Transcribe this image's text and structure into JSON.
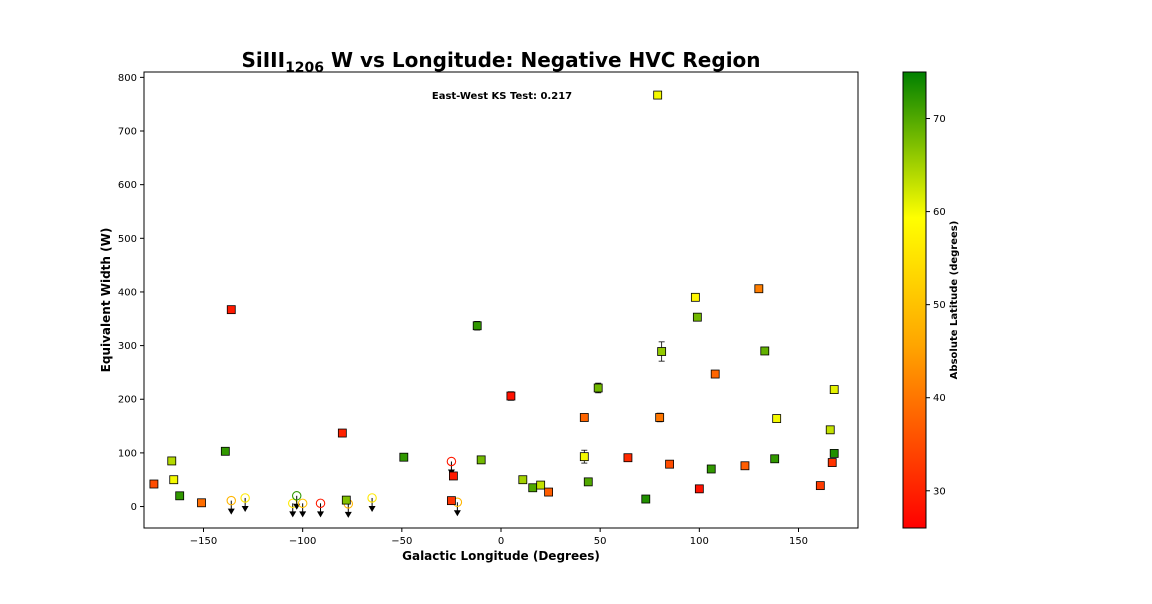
{
  "chart_data": {
    "type": "scatter",
    "title": {
      "prefix": "SiIII",
      "subscript": "1206",
      "suffix": " W vs Longitude: Negative HVC Region"
    },
    "xlabel": "Galactic Longitude (Degrees)",
    "ylabel": "Equivalent Width (W)",
    "xlim": [
      -180,
      180
    ],
    "ylim": [
      -40,
      810
    ],
    "xticks": [
      -150,
      -100,
      -50,
      0,
      50,
      100,
      150
    ],
    "xtick_labels": [
      "−150",
      "−100",
      "−50",
      "0",
      "50",
      "100",
      "150"
    ],
    "yticks": [
      0,
      100,
      200,
      300,
      400,
      500,
      600,
      700,
      800
    ],
    "ytick_labels": [
      "0",
      "100",
      "200",
      "300",
      "400",
      "500",
      "600",
      "700",
      "800"
    ],
    "grid": false,
    "annotation": "East-West KS Test: 0.217",
    "colorbar": {
      "label": "Absolute Latitude (degrees)",
      "range": [
        26,
        75
      ],
      "ticks": [
        30,
        40,
        50,
        60,
        70
      ],
      "tick_labels": [
        "30",
        "40",
        "50",
        "60",
        "70"
      ],
      "colors": [
        "#ff0000",
        "#ffa500",
        "#ffff00",
        "#008000"
      ]
    },
    "detections": [
      {
        "x": -175,
        "y": 42,
        "lat": 35,
        "err": 3
      },
      {
        "x": -166,
        "y": 85,
        "lat": 64,
        "err": 4
      },
      {
        "x": -165,
        "y": 50,
        "lat": 60,
        "err": 4
      },
      {
        "x": -162,
        "y": 20,
        "lat": 72,
        "err": 3
      },
      {
        "x": -151,
        "y": 7,
        "lat": 39,
        "err": 3
      },
      {
        "x": -139,
        "y": 103,
        "lat": 72,
        "err": 4
      },
      {
        "x": -136,
        "y": 367,
        "lat": 29,
        "err": 4
      },
      {
        "x": -80,
        "y": 137,
        "lat": 30,
        "err": 3
      },
      {
        "x": -78,
        "y": 12,
        "lat": 67,
        "err": 3
      },
      {
        "x": -49,
        "y": 92,
        "lat": 72,
        "err": 5
      },
      {
        "x": -25,
        "y": 11,
        "lat": 32,
        "err": 3
      },
      {
        "x": -24,
        "y": 57,
        "lat": 29,
        "err": 3
      },
      {
        "x": -12,
        "y": 337,
        "lat": 72,
        "err": 8
      },
      {
        "x": -10,
        "y": 87,
        "lat": 68,
        "err": 4
      },
      {
        "x": 5,
        "y": 206,
        "lat": 28,
        "err": 8
      },
      {
        "x": 11,
        "y": 50,
        "lat": 65,
        "err": 4
      },
      {
        "x": 16,
        "y": 35,
        "lat": 70,
        "err": 3
      },
      {
        "x": 20,
        "y": 40,
        "lat": 63,
        "err": 4
      },
      {
        "x": 24,
        "y": 27,
        "lat": 37,
        "err": 3
      },
      {
        "x": 42,
        "y": 166,
        "lat": 38,
        "err": 4
      },
      {
        "x": 42,
        "y": 93,
        "lat": 60,
        "err": 12
      },
      {
        "x": 44,
        "y": 46,
        "lat": 70,
        "err": 3
      },
      {
        "x": 49,
        "y": 221,
        "lat": 68,
        "err": 9
      },
      {
        "x": 64,
        "y": 91,
        "lat": 31,
        "err": 4
      },
      {
        "x": 73,
        "y": 14,
        "lat": 73,
        "err": 4
      },
      {
        "x": 79,
        "y": 767,
        "lat": 60,
        "err": 4
      },
      {
        "x": 80,
        "y": 166,
        "lat": 40,
        "err": 8
      },
      {
        "x": 81,
        "y": 289,
        "lat": 66,
        "err": 18
      },
      {
        "x": 85,
        "y": 79,
        "lat": 35,
        "err": 3
      },
      {
        "x": 98,
        "y": 390,
        "lat": 58,
        "err": 4
      },
      {
        "x": 99,
        "y": 353,
        "lat": 68,
        "err": 4
      },
      {
        "x": 100,
        "y": 33,
        "lat": 28,
        "err": 4
      },
      {
        "x": 106,
        "y": 70,
        "lat": 72,
        "err": 3
      },
      {
        "x": 108,
        "y": 247,
        "lat": 38,
        "err": 4
      },
      {
        "x": 123,
        "y": 76,
        "lat": 37,
        "err": 6
      },
      {
        "x": 130,
        "y": 406,
        "lat": 41,
        "err": 4
      },
      {
        "x": 133,
        "y": 290,
        "lat": 69,
        "err": 3
      },
      {
        "x": 138,
        "y": 89,
        "lat": 72,
        "err": 3
      },
      {
        "x": 139,
        "y": 164,
        "lat": 60,
        "err": 4
      },
      {
        "x": 161,
        "y": 39,
        "lat": 33,
        "err": 3
      },
      {
        "x": 166,
        "y": 143,
        "lat": 63,
        "err": 4
      },
      {
        "x": 167,
        "y": 82,
        "lat": 32,
        "err": 3
      },
      {
        "x": 168,
        "y": 218,
        "lat": 61,
        "err": 4
      },
      {
        "x": 168,
        "y": 99,
        "lat": 73,
        "err": 4
      }
    ],
    "upper_limits": [
      {
        "x": -136,
        "y": 11,
        "lat": 48
      },
      {
        "x": -129,
        "y": 16,
        "lat": 56
      },
      {
        "x": -105,
        "y": 6,
        "lat": 56
      },
      {
        "x": -103,
        "y": 20,
        "lat": 72
      },
      {
        "x": -100,
        "y": 6,
        "lat": 50
      },
      {
        "x": -91,
        "y": 6,
        "lat": 29
      },
      {
        "x": -77,
        "y": 5,
        "lat": 48
      },
      {
        "x": -65,
        "y": 16,
        "lat": 56
      },
      {
        "x": -25,
        "y": 84,
        "lat": 29
      },
      {
        "x": -22,
        "y": 8,
        "lat": 48
      }
    ]
  }
}
